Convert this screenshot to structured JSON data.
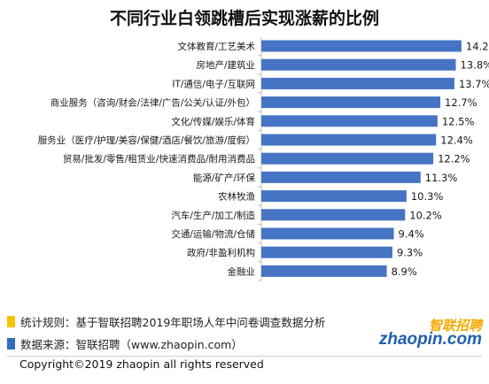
{
  "title": "不同行业白领跳槽后实现涨薪的比例",
  "chart_data": {
    "type": "bar",
    "orientation": "horizontal",
    "title": "不同行业白领跳槽后实现涨薪的比例",
    "categories": [
      "文体教育/工艺美术",
      "房地产/建筑业",
      "IT/通信/电子/互联网",
      "商业服务（咨询/财会/法律/广告/公关/认证/外包）",
      "文化/传媒/娱乐/体育",
      "服务业（医疗/护理/美容/保健/酒店/餐饮/旅游/度假）",
      "贸易/批发/零售/租赁业/快速消费品/耐用消费品",
      "能源/矿产/环保",
      "农林牧渔",
      "汽车/生产/加工/制造",
      "交通/运输/物流/仓储",
      "政府/非盈利机构",
      "金融业"
    ],
    "values": [
      14.2,
      13.8,
      13.7,
      12.7,
      12.5,
      12.4,
      12.2,
      11.3,
      10.3,
      10.2,
      9.4,
      9.3,
      8.9
    ],
    "value_labels": [
      "14.2%",
      "13.8%",
      "13.7%",
      "12.7%",
      "12.5%",
      "12.4%",
      "12.2%",
      "11.3%",
      "10.3%",
      "10.2%",
      "9.4%",
      "9.3%",
      "8.9%"
    ],
    "unit": "%",
    "xlim": [
      0,
      15.4
    ],
    "grid": false,
    "bar_color": "#4674c4"
  },
  "notes": {
    "method": "统计规则：基于智联招聘2019年职场人年中问卷调查数据分析",
    "source": "数据来源：智联招聘（www.zhaopin.com）",
    "method_color": "#f5c400",
    "source_color": "#2e6fc0"
  },
  "logo": {
    "cn": "智联招聘",
    "en": "zhaopin.com"
  },
  "copyright": "Copyright©2019 zhaopin all rights reserved"
}
